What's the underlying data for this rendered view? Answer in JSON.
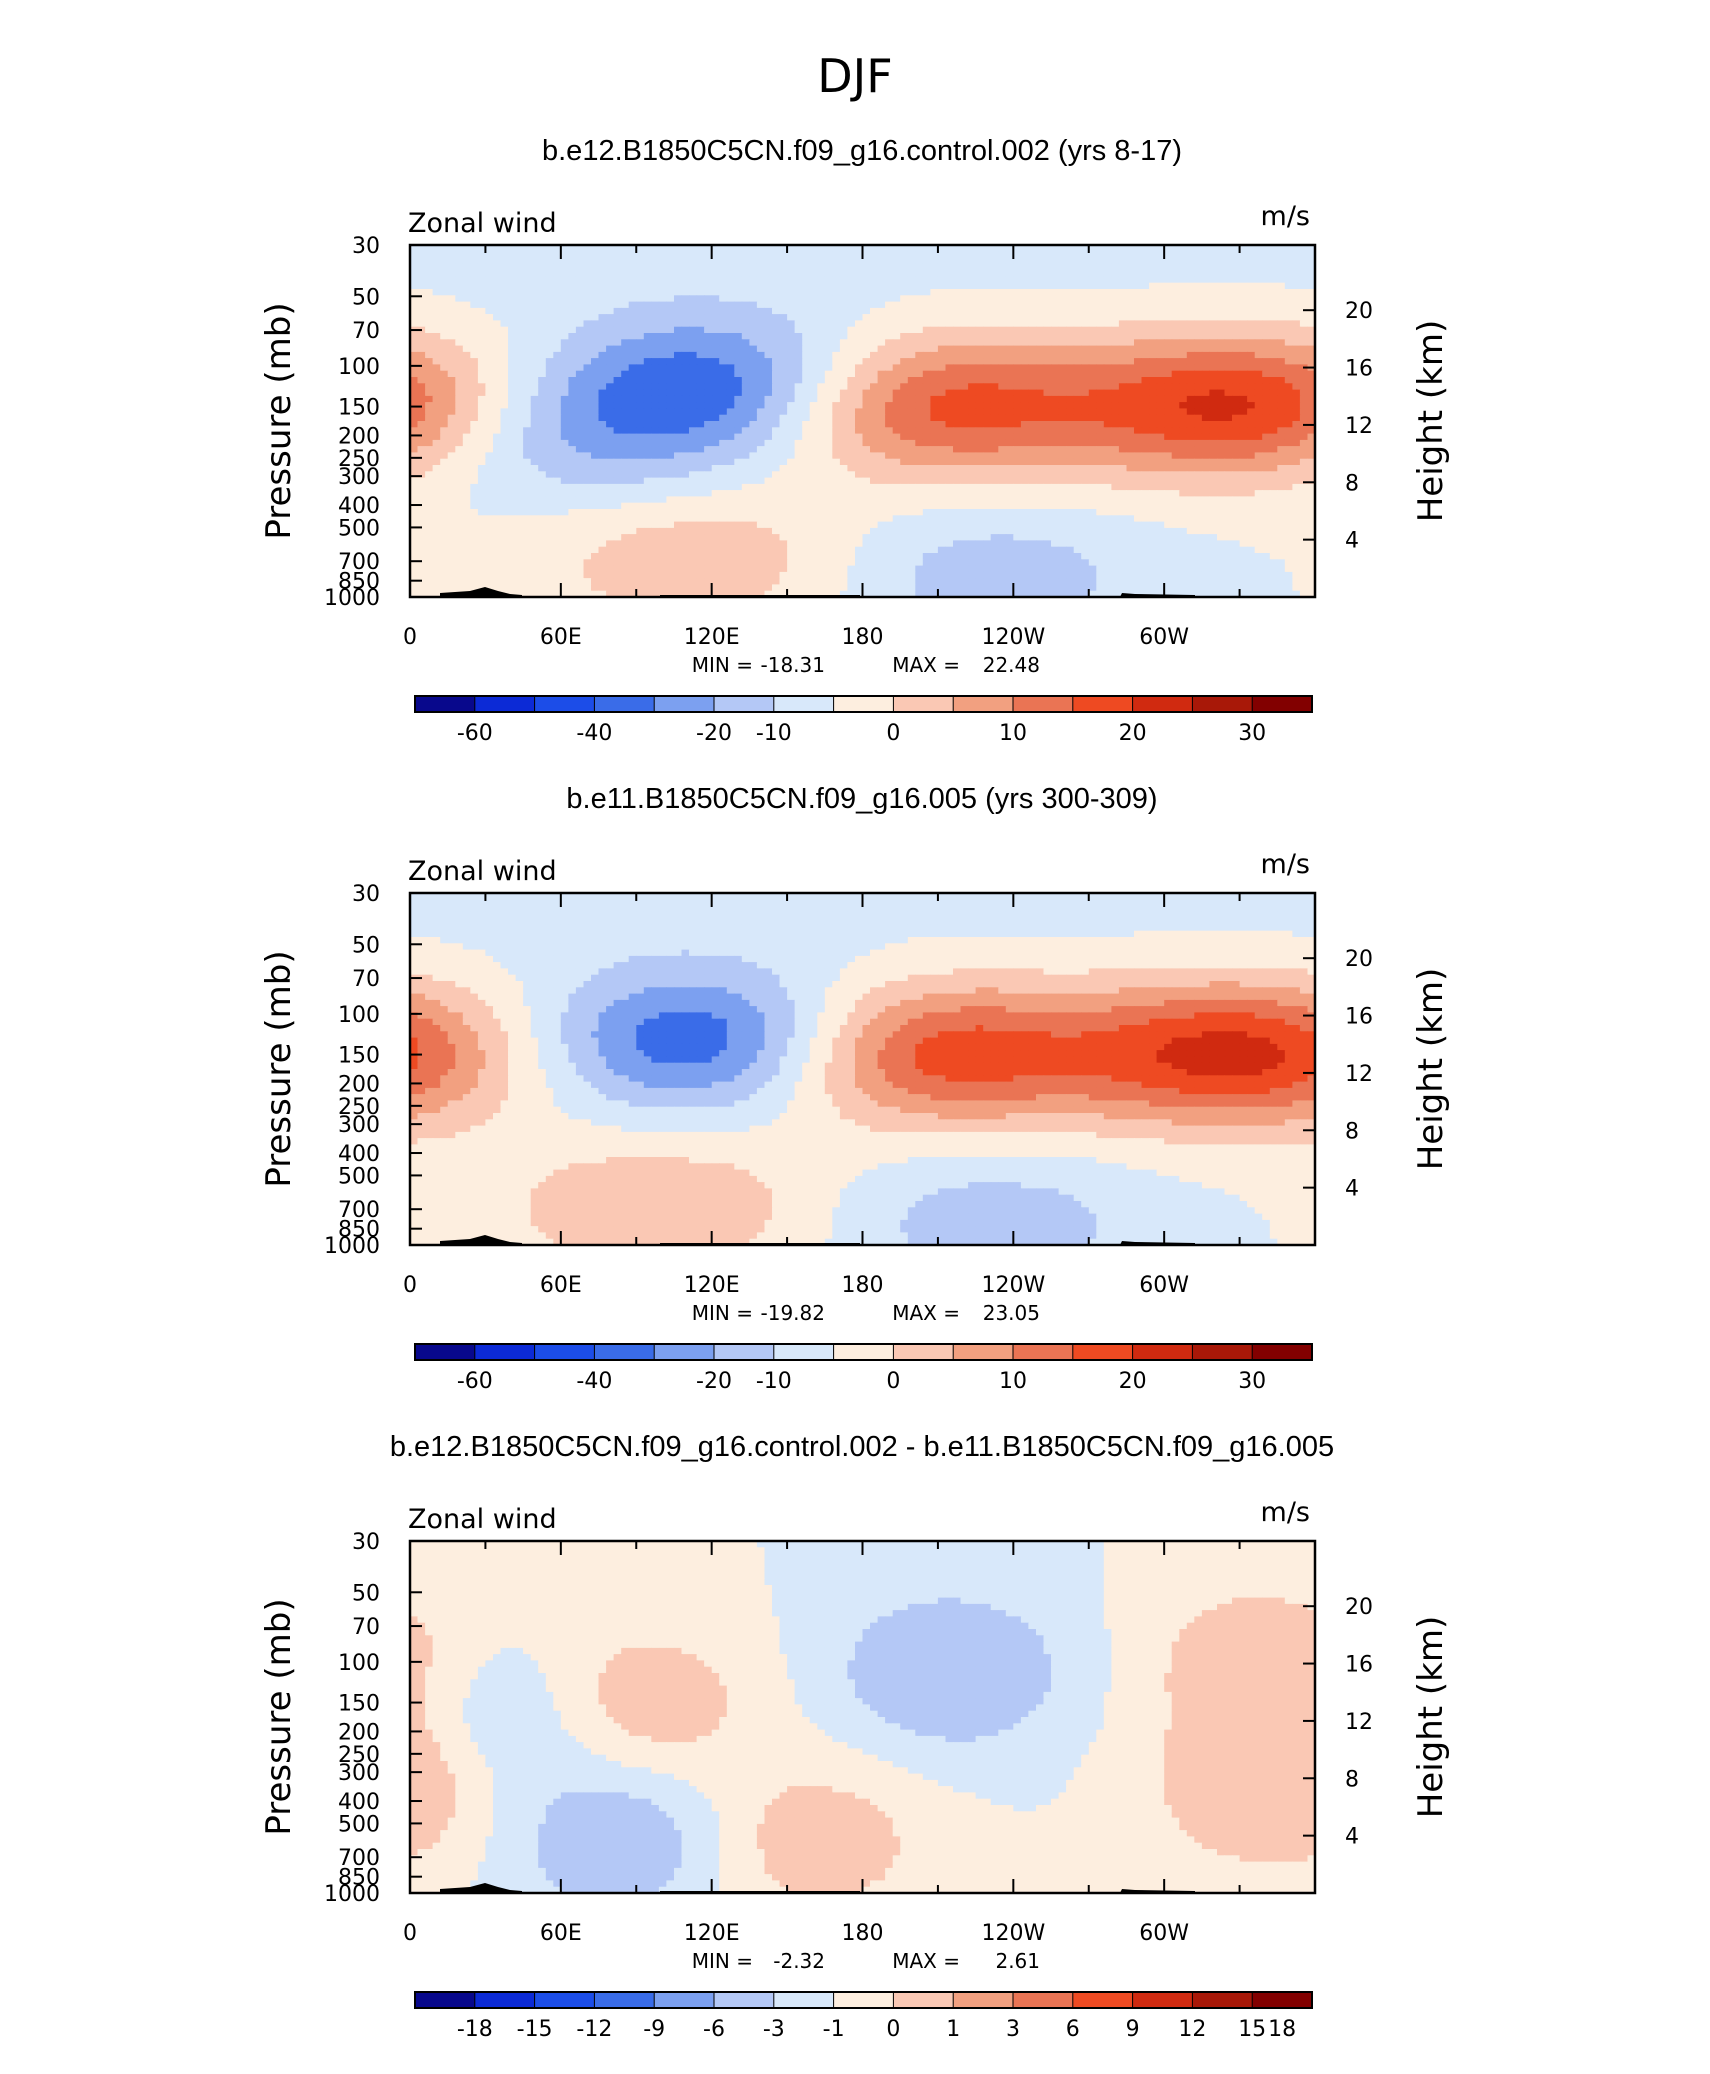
{
  "figure_title": "DJF",
  "chart_data": [
    {
      "type": "heatmap",
      "title": "b.e12.B1850C5CN.f09_g16.control.002 (yrs 8-17)",
      "variable": "Zonal wind",
      "units": "m/s",
      "ylabel": "Pressure (mb)",
      "ylabel_right": "Height (km)",
      "x_ticks": [
        "0",
        "60E",
        "120E",
        "180",
        "120W",
        "60W"
      ],
      "y_ticks": [
        "30",
        "50",
        "70",
        "100",
        "150",
        "200",
        "250",
        "300",
        "400",
        "500",
        "700",
        "850",
        "1000"
      ],
      "height_ticks": [
        "20",
        "16",
        "12",
        "8",
        "4"
      ],
      "min_label": "MIN =",
      "min": "-18.31",
      "max_label": "MAX =",
      "max": "22.48",
      "colorbar_labels": [
        "-60",
        "-40",
        "-20",
        "-10",
        "0",
        "10",
        "20",
        "30"
      ],
      "features": [
        {
          "lon": 210,
          "p": 150,
          "value": 22
        },
        {
          "lon": 320,
          "p": 150,
          "value": 20
        },
        {
          "lon": 120,
          "p": 120,
          "value": -18
        },
        {
          "lon": 0,
          "p": 150,
          "value": 8
        },
        {
          "lon": 115,
          "p": 700,
          "value": 9
        },
        {
          "lon": 65,
          "p": 200,
          "value": -10
        },
        {
          "lon": 230,
          "p": 800,
          "value": -8
        }
      ]
    },
    {
      "type": "heatmap",
      "title": "b.e11.B1850C5CN.f09_g16.005 (yrs 300-309)",
      "variable": "Zonal wind",
      "units": "m/s",
      "ylabel": "Pressure (mb)",
      "ylabel_right": "Height (km)",
      "x_ticks": [
        "0",
        "60E",
        "120E",
        "180",
        "120W",
        "60W"
      ],
      "y_ticks": [
        "30",
        "50",
        "70",
        "100",
        "150",
        "200",
        "250",
        "300",
        "400",
        "500",
        "700",
        "850",
        "1000"
      ],
      "height_ticks": [
        "20",
        "16",
        "12",
        "8",
        "4"
      ],
      "min_label": "MIN =",
      "min": "-19.82",
      "max_label": "MAX =",
      "max": "23.05",
      "colorbar_labels": [
        "-60",
        "-40",
        "-20",
        "-10",
        "0",
        "10",
        "20",
        "30"
      ],
      "features": [
        {
          "lon": 210,
          "p": 150,
          "value": 23
        },
        {
          "lon": 320,
          "p": 150,
          "value": 21
        },
        {
          "lon": 115,
          "p": 130,
          "value": -20
        },
        {
          "lon": 0,
          "p": 150,
          "value": 8
        },
        {
          "lon": 100,
          "p": 700,
          "value": 10
        },
        {
          "lon": 230,
          "p": 800,
          "value": -8
        }
      ]
    },
    {
      "type": "heatmap",
      "title": "b.e12.B1850C5CN.f09_g16.control.002 - b.e11.B1850C5CN.f09_g16.005",
      "variable": "Zonal wind",
      "units": "m/s",
      "ylabel": "Pressure (mb)",
      "ylabel_right": "Height (km)",
      "x_ticks": [
        "0",
        "60E",
        "120E",
        "180",
        "120W",
        "60W"
      ],
      "y_ticks": [
        "30",
        "50",
        "70",
        "100",
        "150",
        "200",
        "250",
        "300",
        "400",
        "500",
        "700",
        "850",
        "1000"
      ],
      "height_ticks": [
        "20",
        "16",
        "12",
        "8",
        "4"
      ],
      "min_label": "MIN =",
      "min": "-2.32",
      "max_label": "MAX =",
      "max": "2.61",
      "colorbar_labels": [
        "-18",
        "-15",
        "-12",
        "-9",
        "-6",
        "-3",
        "-1",
        "0",
        "1",
        "3",
        "6",
        "9",
        "12",
        "15",
        "18"
      ],
      "features": [
        {
          "lon": 215,
          "p": 110,
          "value": -2.3
        },
        {
          "lon": 90,
          "p": 150,
          "value": 2.0
        },
        {
          "lon": 85,
          "p": 600,
          "value": -2.0
        },
        {
          "lon": 160,
          "p": 600,
          "value": 1.8
        },
        {
          "lon": 340,
          "p": 100,
          "value": 2.0
        },
        {
          "lon": 345,
          "p": 350,
          "value": 2.6
        },
        {
          "lon": 40,
          "p": 170,
          "value": -1.5
        }
      ]
    }
  ],
  "colors": {
    "cmap": [
      "#08088c",
      "#0c2ad6",
      "#1c4de8",
      "#3a6ce8",
      "#7ca0f0",
      "#b4c8f6",
      "#d8e8fa",
      "#fdeedf",
      "#fac8b4",
      "#f2a080",
      "#ea7454",
      "#ee4a22",
      "#d02a10",
      "#a81808",
      "#820000"
    ],
    "background": "#ffffff",
    "topography": "#000000"
  }
}
